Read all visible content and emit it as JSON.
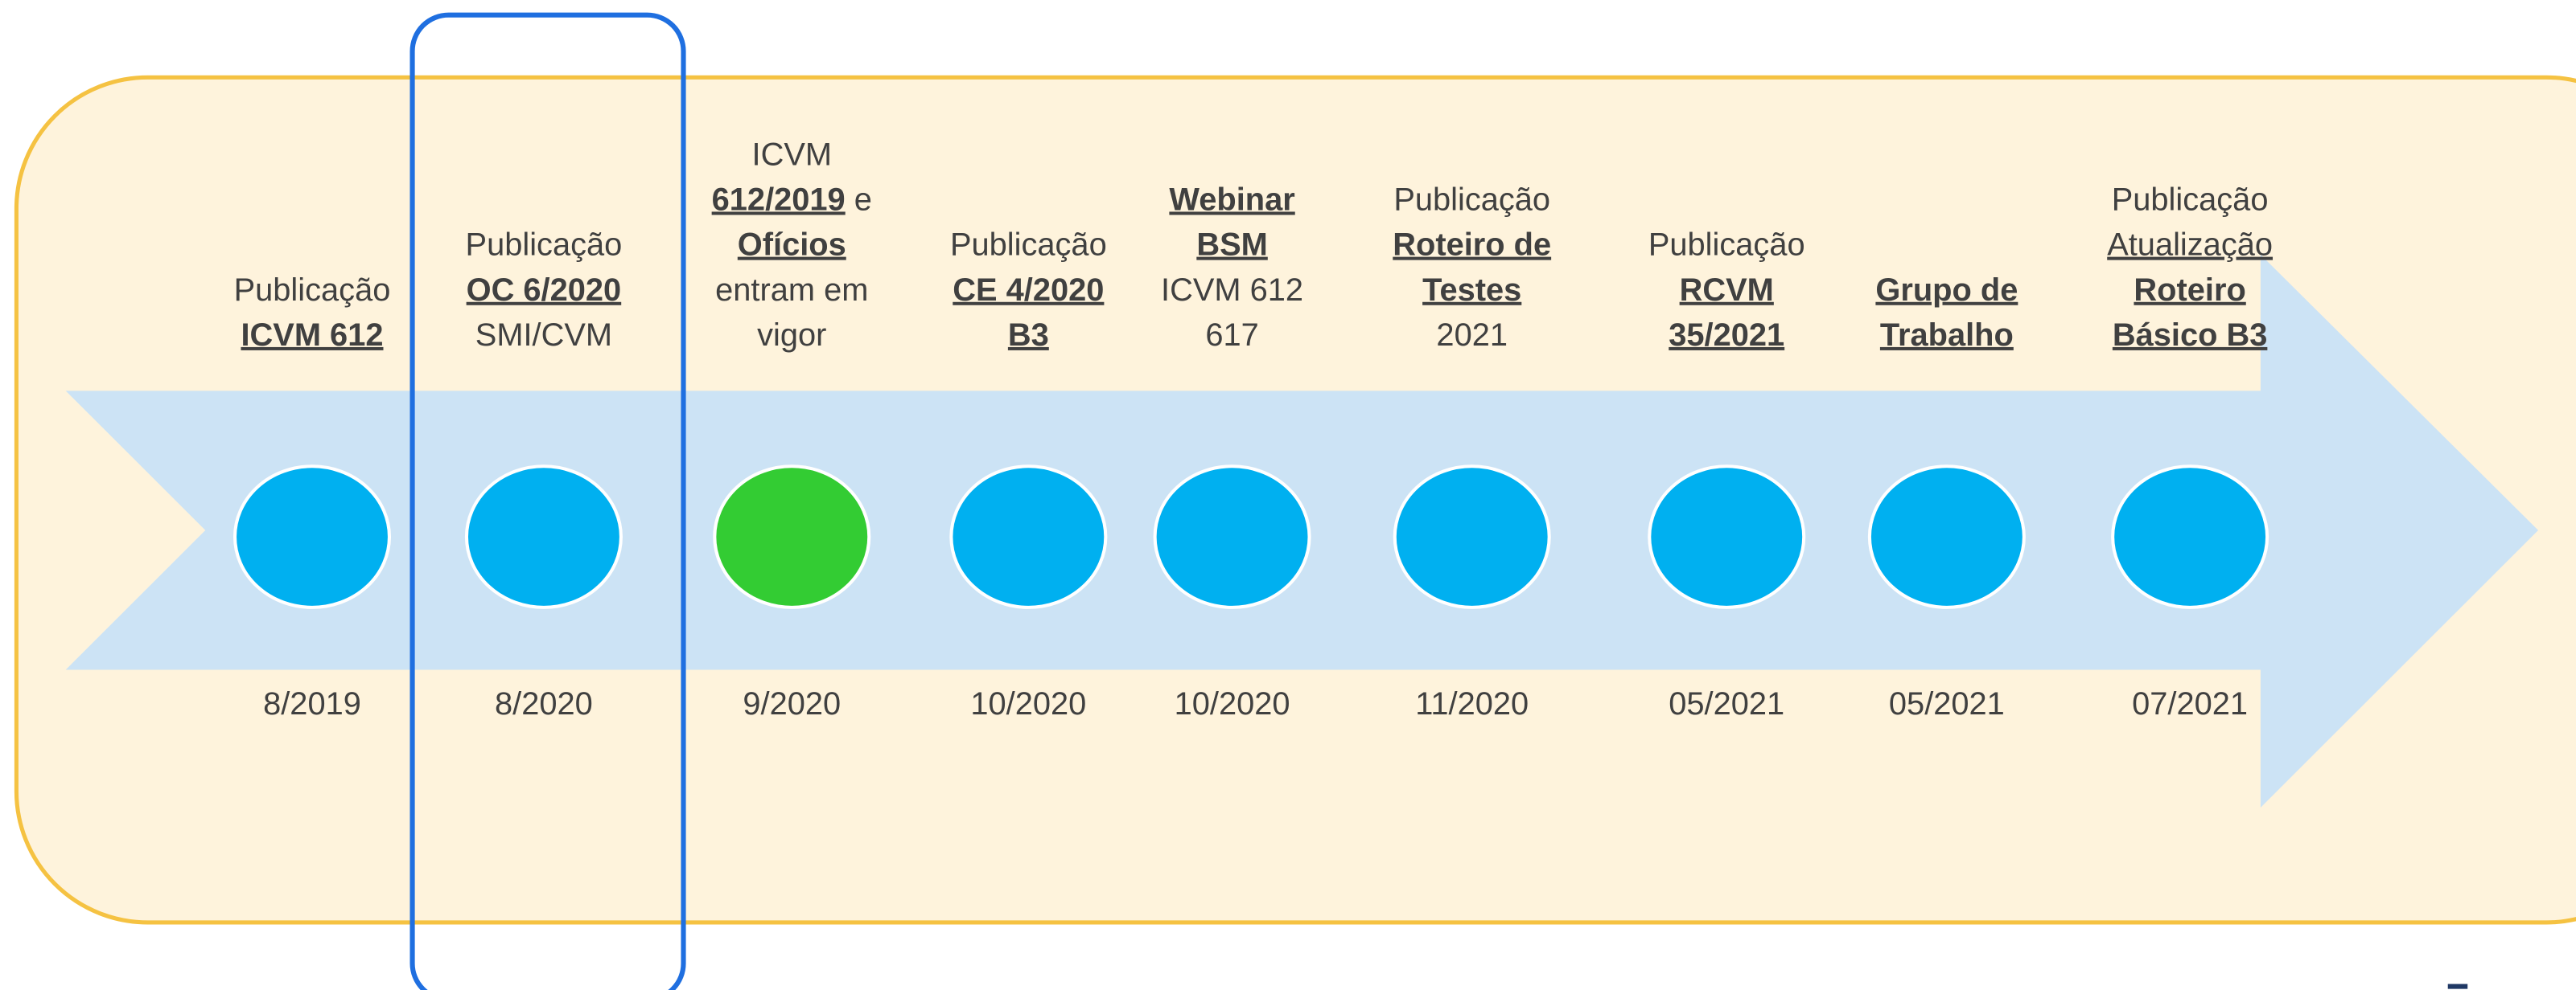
{
  "events": [
    {
      "color": "#00b0f0",
      "date": "8/2019",
      "lines": [
        [
          {
            "text": "Publicação"
          }
        ],
        [
          {
            "text": "ICVM 612",
            "style": "bold-underline"
          }
        ]
      ]
    },
    {
      "color": "#00b0f0",
      "date": "8/2020",
      "lines": [
        [
          {
            "text": "Publicação"
          }
        ],
        [
          {
            "text": "OC 6/2020",
            "style": "bold-underline"
          }
        ],
        [
          {
            "text": "SMI/CVM"
          }
        ]
      ]
    },
    {
      "color": "#33cc33",
      "date": "9/2020",
      "lines": [
        [
          {
            "text": "ICVM"
          }
        ],
        [
          {
            "text": "612/2019",
            "style": "bold-underline"
          },
          {
            "text": " e"
          }
        ],
        [
          {
            "text": "Ofícios",
            "style": "bold-underline"
          }
        ],
        [
          {
            "text": "entram em"
          }
        ],
        [
          {
            "text": "vigor"
          }
        ]
      ]
    },
    {
      "color": "#00b0f0",
      "date": "10/2020",
      "lines": [
        [
          {
            "text": "Publicação"
          }
        ],
        [
          {
            "text": "CE 4/2020",
            "style": "bold-underline"
          }
        ],
        [
          {
            "text": "B3",
            "style": "bold-underline"
          }
        ]
      ]
    },
    {
      "color": "#00b0f0",
      "date": "10/2020",
      "lines": [
        [
          {
            "text": "Webinar",
            "style": "bold-underline"
          }
        ],
        [
          {
            "text": "BSM",
            "style": "bold-underline"
          }
        ],
        [
          {
            "text": "ICVM 612"
          }
        ],
        [
          {
            "text": "617"
          }
        ]
      ]
    },
    {
      "color": "#00b0f0",
      "date": "11/2020",
      "lines": [
        [
          {
            "text": "Publicação"
          }
        ],
        [
          {
            "text": "Roteiro de",
            "style": "bold-underline"
          }
        ],
        [
          {
            "text": "Testes",
            "style": "bold-underline"
          }
        ],
        [
          {
            "text": "2021"
          }
        ]
      ]
    },
    {
      "color": "#00b0f0",
      "date": "05/2021",
      "lines": [
        [
          {
            "text": "Publicação"
          }
        ],
        [
          {
            "text": "RCVM",
            "style": "bold-underline"
          }
        ],
        [
          {
            "text": "35/2021",
            "style": "bold-underline"
          }
        ]
      ]
    },
    {
      "color": "#00b0f0",
      "date": "05/2021",
      "lines": [
        [
          {
            "text": "Grupo de",
            "style": "bold-underline"
          }
        ],
        [
          {
            "text": "Trabalho",
            "style": "bold-underline"
          }
        ]
      ]
    },
    {
      "color": "#00b0f0",
      "date": "07/2021",
      "lines": [
        [
          {
            "text": "Publicação"
          }
        ],
        [
          {
            "text": "Atualização",
            "style": "underline"
          }
        ],
        [
          {
            "text": "Roteiro",
            "style": "bold-underline"
          }
        ],
        [
          {
            "text": "Básico B3",
            "style": "bold-underline"
          }
        ]
      ]
    }
  ]
}
